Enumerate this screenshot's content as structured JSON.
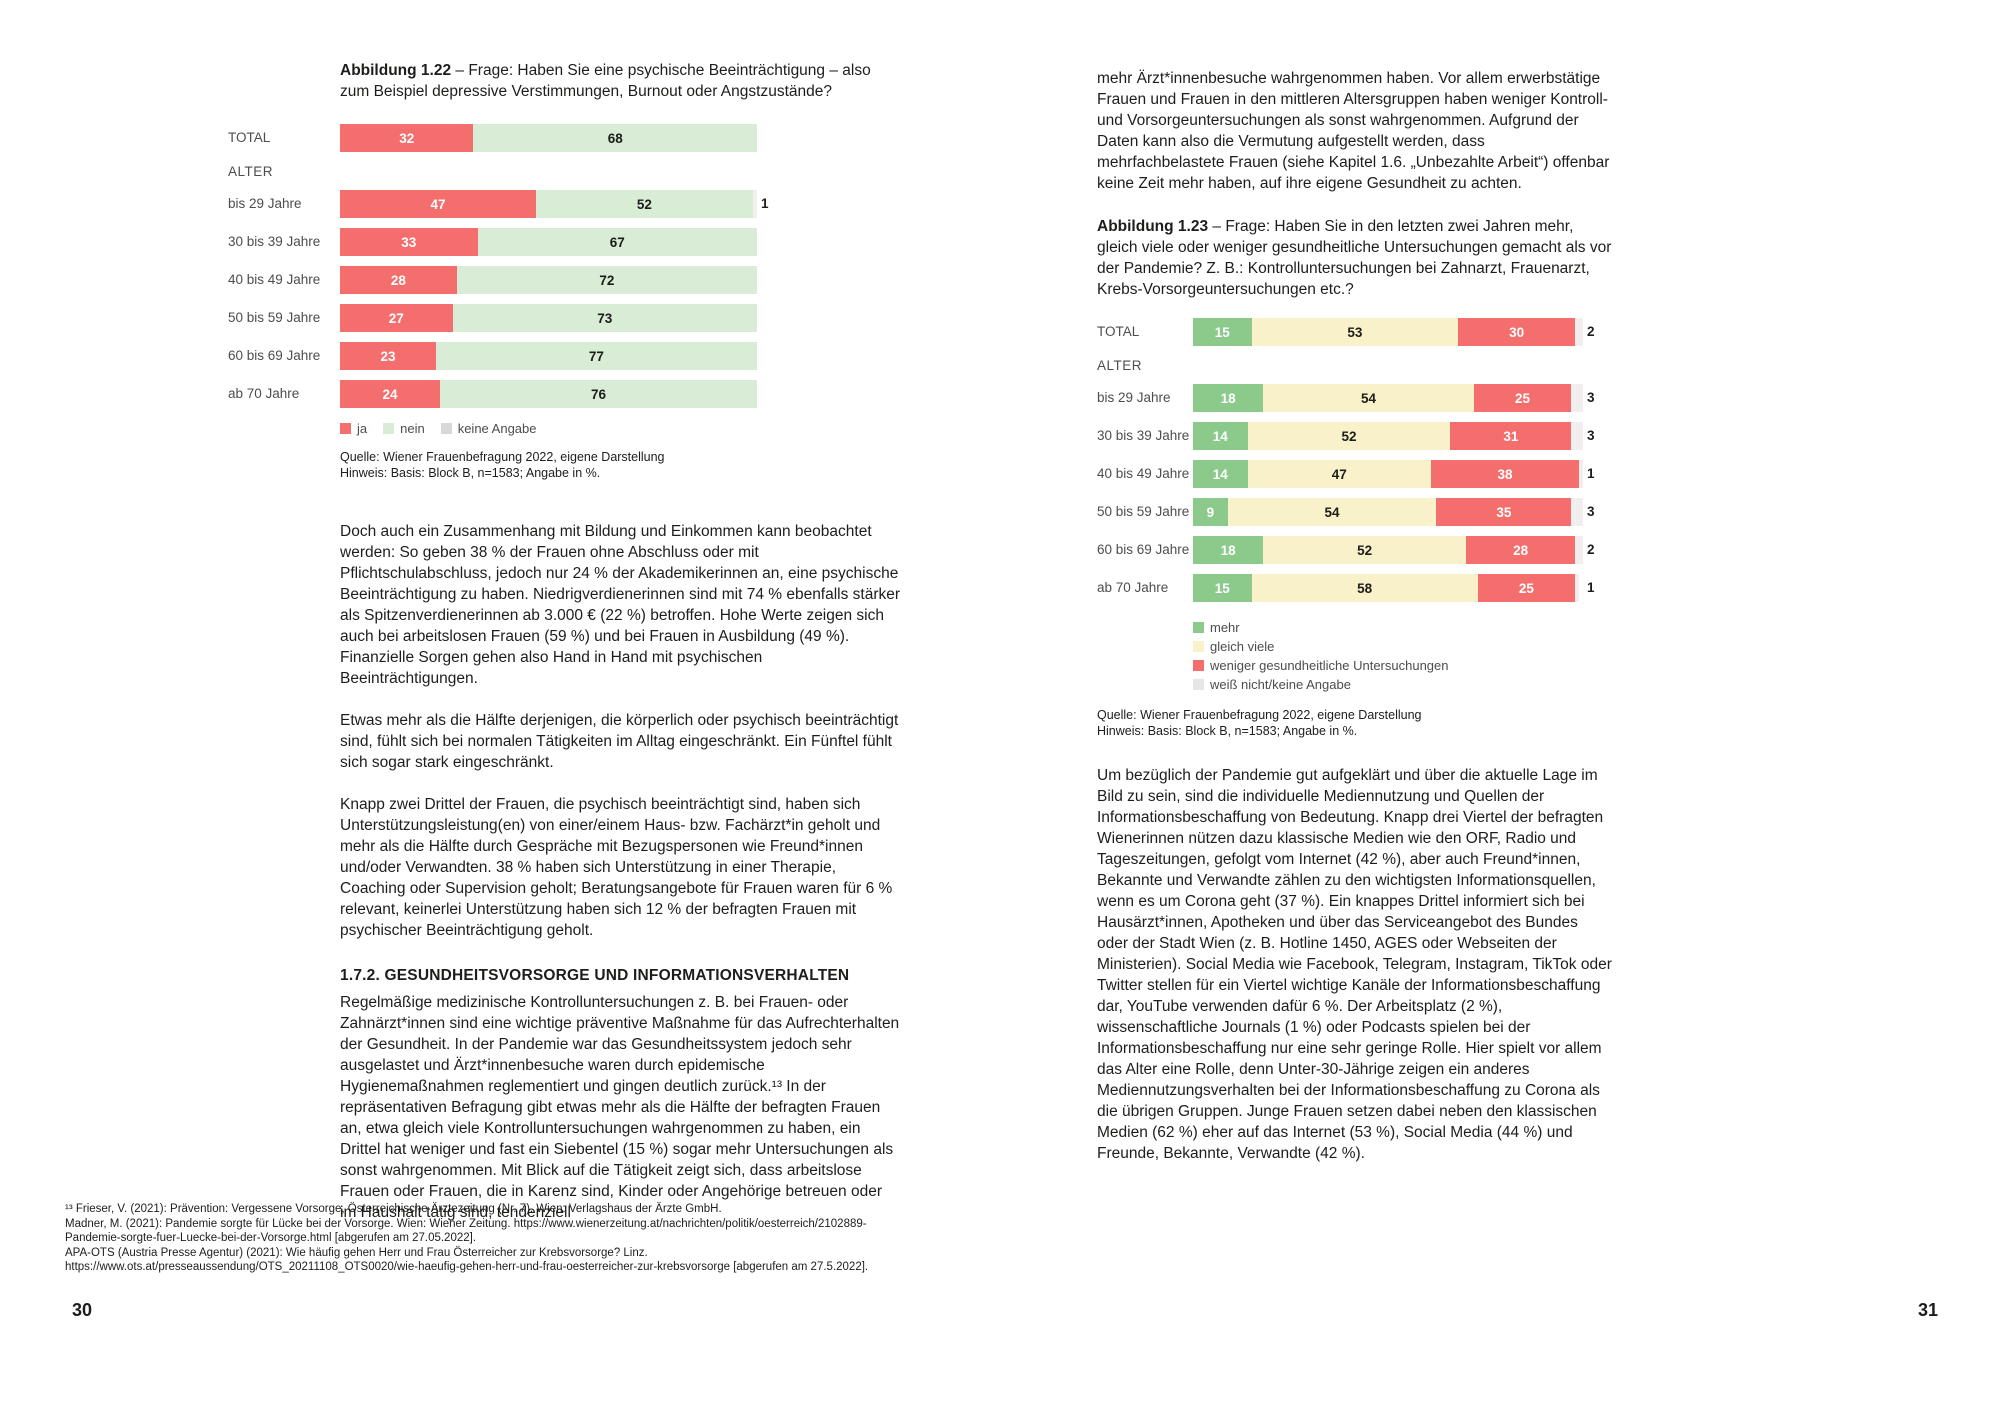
{
  "colors": {
    "text": "#1d1d1b",
    "axis_label_gray": "#4d4d4d",
    "red": "#f56e6e",
    "pale_green": "#d9ecd5",
    "green": "#8cca8c",
    "pale_yellow": "#f8f1c9",
    "light_gray": "#efefee"
  },
  "left": {
    "page_number": "30",
    "figure_label": "Abbildung 1.22",
    "figure_caption_rest": " – Frage: Haben Sie eine psychische Beeinträchtigung – also zum Beispiel depressive Verstimmungen, Burnout oder Angstzustände?",
    "source_line1": "Quelle: Wiener Frauenbefragung 2022, eigene Darstellung",
    "source_line2": "Hinweis: Basis: Block B, n=1583; Angabe in %.",
    "paragraphs_1": [
      "Doch auch ein Zusammenhang mit Bildung und Einkommen kann beobachtet werden: So geben 38 % der Frauen ohne Abschluss oder mit Pflichtschulabschluss, jedoch nur 24 % der Akademikerinnen an, eine psychische Beeinträchtigung zu haben. Niedrigverdienerinnen sind mit 74 % ebenfalls stärker als Spitzenverdienerinnen ab 3.000 € (22 %) betroffen. Hohe Werte zeigen sich auch bei arbeitslosen Frauen (59 %) und bei Frauen in Ausbildung (49 %). Finanzielle Sorgen gehen also Hand in Hand mit psychischen Beeinträchtigungen.",
      "Etwas mehr als die Hälfte derjenigen, die körperlich oder psychisch beeinträchtigt sind, fühlt sich bei normalen Tätigkeiten im Alltag eingeschränkt. Ein Fünftel fühlt sich sogar stark eingeschränkt.",
      "Knapp zwei Drittel der Frauen, die psychisch beeinträchtigt sind, haben sich Unterstützungsleistung(en) von einer/einem Haus- bzw. Fachärzt*in geholt und mehr als die Hälfte durch Gespräche mit Bezugspersonen wie Freund*innen und/oder Verwandten. 38 % haben sich Unterstützung in einer Therapie, Coaching oder Supervision geholt; Beratungsangebote für Frauen waren für 6 % relevant, keinerlei Unterstützung haben sich 12 % der befragten Frauen mit psychischer Beeinträchtigung geholt."
    ],
    "section_heading": "1.7.2. GESUNDHEITSVORSORGE UND INFORMATIONSVERHALTEN",
    "paragraphs_2": [
      "Regelmäßige medizinische Kontrolluntersuchungen z. B. bei Frauen- oder Zahnärzt*innen sind eine wichtige präventive Maßnahme für das Aufrechterhalten der Gesundheit. In der Pandemie war das Gesundheitssystem jedoch sehr ausgelastet und Ärzt*innenbesuche waren durch epidemische Hygienemaßnahmen reglementiert und gingen deutlich zurück.¹³ In der repräsentativen Befragung gibt etwas mehr als die Hälfte der befragten Frauen an, etwa gleich viele Kontrolluntersuchungen wahrgenommen zu haben, ein Drittel hat weniger und fast ein Siebentel (15 %) sogar mehr Untersuchungen als sonst wahrgenommen. Mit Blick auf die Tätigkeit zeigt sich, dass arbeitslose Frauen oder Frauen, die in Karenz sind, Kinder oder Angehörige betreuen oder im Haushalt tätig sind, tendenziell"
    ],
    "footnotes": [
      "¹³ Frieser, V. (2021): Prävention: Vergessene Vorsorge, Österreichische Ärztezeitung (Nr. 7). Wien: Verlagshaus der Ärzte GmbH.",
      "Madner, M. (2021): Pandemie sorgte für Lücke bei der Vorsorge. Wien: Wiener Zeitung. https://www.wienerzeitung.at/nachrichten/politik/oesterreich/2102889-Pandemie-sorgte-fuer-Luecke-bei-der-Vorsorge.html [abgerufen am 27.05.2022].",
      "APA-OTS (Austria Presse Agentur) (2021): Wie häufig gehen Herr und Frau Österreicher zur Krebsvorsorge? Linz. https://www.ots.at/presseaussendung/OTS_20211108_OTS0020/wie-haeufig-gehen-herr-und-frau-oesterreicher-zur-krebsvorsorge [abgerufen am 27.5.2022]."
    ]
  },
  "right": {
    "page_number": "31",
    "intro_paragraph": "mehr Ärzt*innenbesuche wahrgenommen haben. Vor allem erwerbstätige Frauen und Frauen in den mittleren Altersgruppen haben weniger Kontroll- und Vorsorgeuntersuchungen als sonst wahrgenommen. Aufgrund der Daten kann also die Vermutung aufgestellt werden, dass mehrfachbelastete Frauen (siehe Kapitel 1.6. „Unbezahlte Arbeit“) offenbar keine Zeit mehr haben, auf ihre eigene Gesundheit zu achten.",
    "figure_label": "Abbildung 1.23",
    "figure_caption_rest": " – Frage: Haben Sie in den letzten zwei Jahren mehr, gleich viele oder weniger gesundheitliche Untersuchungen gemacht als vor der Pandemie? Z. B.: Kontrolluntersuchungen bei Zahnarzt, Frauenarzt, Krebs-Vorsorgeuntersuchungen etc.?",
    "source_line1": "Quelle: Wiener Frauenbefragung 2022, eigene Darstellung",
    "source_line2": "Hinweis: Basis: Block B, n=1583; Angabe in %.",
    "paragraph": "Um bezüglich der Pandemie gut aufgeklärt und über die aktuelle Lage im Bild zu sein, sind die individuelle Mediennutzung und Quellen der Informationsbeschaffung von Bedeutung. Knapp drei Viertel der befragten Wienerinnen nützen dazu klassische Medien wie den ORF, Radio und Tageszeitungen, gefolgt vom Internet (42 %), aber auch Freund*innen, Bekannte und Verwandte zählen zu den wichtigsten Informationsquellen, wenn es um Corona geht (37 %). Ein knappes Drittel informiert sich bei Hausärzt*innen, Apotheken und über das Serviceangebot des Bundes oder der Stadt Wien (z. B. Hotline 1450, AGES oder Webseiten der Ministerien). Social Media wie Facebook, Telegram, Instagram, TikTok oder Twitter stellen für ein Viertel wichtige Kanäle der Informationsbeschaffung dar, YouTube verwenden dafür 6 %. Der Arbeitsplatz (2 %), wissenschaftliche Journals (1 %) oder Podcasts spielen bei der Informationsbeschaffung nur eine sehr geringe Rolle. Hier spielt vor allem das Alter eine Rolle, denn Unter-30-Jährige zeigen ein anderes Mediennutzungsverhalten bei der Informationsbeschaffung zu Corona als die übrigen Gruppen. Junge Frauen setzen dabei neben den klassischen Medien (62 %) eher auf das Internet (53 %), Social Media (44 %) und Freunde, Bekannte, Verwandte (42 %)."
  },
  "chart_data": [
    {
      "id": "chart-1-22",
      "type": "bar",
      "stacked": true,
      "orientation": "horizontal",
      "title": "Abbildung 1.22 – Frage: Haben Sie eine psychische Beeinträchtigung – also zum Beispiel depressive Verstimmungen, Burnout oder Angstzustände?",
      "group_label": "ALTER",
      "categories": [
        "TOTAL",
        "bis 29 Jahre",
        "30 bis 39 Jahre",
        "40 bis 49 Jahre",
        "50 bis 59 Jahre",
        "60 bis 69 Jahre",
        "ab 70 Jahre"
      ],
      "xlim": [
        0,
        100
      ],
      "unit": "%",
      "legend_position": "bottom-horizontal",
      "series": [
        {
          "name": "ja",
          "color": "#f56e6e",
          "label_color": "#ffffff",
          "values": [
            32,
            47,
            33,
            28,
            27,
            23,
            24
          ]
        },
        {
          "name": "nein",
          "color": "#d9ecd5",
          "label_color": "#1d1d1b",
          "values": [
            68,
            52,
            67,
            72,
            73,
            77,
            76
          ]
        },
        {
          "name": "keine Angabe",
          "color": "#efefee",
          "legend_color": "#d8d8d8",
          "label_color": "#1d1d1b",
          "label_outside": true,
          "values": [
            0,
            1,
            0,
            0,
            0,
            0,
            0
          ]
        }
      ],
      "source": "Quelle: Wiener Frauenbefragung 2022, eigene Darstellung",
      "note": "Hinweis: Basis: Block B, n=1583; Angabe in %."
    },
    {
      "id": "chart-1-23",
      "type": "bar",
      "stacked": true,
      "orientation": "horizontal",
      "title": "Abbildung 1.23 – Frage: Haben Sie in den letzten zwei Jahren mehr, gleich viele oder weniger gesundheitliche Untersuchungen gemacht als vor der Pandemie? Z. B.: Kontrolluntersuchungen bei Zahnarzt, Frauenarzt, Krebs-Vorsorgeuntersuchungen etc.?",
      "group_label": "ALTER",
      "categories": [
        "TOTAL",
        "bis 29 Jahre",
        "30 bis 39 Jahre",
        "40 bis 49 Jahre",
        "50 bis 59 Jahre",
        "60 bis 69 Jahre",
        "ab 70 Jahre"
      ],
      "xlim": [
        0,
        100
      ],
      "unit": "%",
      "legend_position": "bottom-vertical",
      "series": [
        {
          "name": "mehr",
          "color": "#8cca8c",
          "label_color": "#ffffff",
          "values": [
            15,
            18,
            14,
            14,
            9,
            18,
            15
          ]
        },
        {
          "name": "gleich viele",
          "color": "#f8f1c9",
          "label_color": "#1d1d1b",
          "values": [
            53,
            54,
            52,
            47,
            54,
            52,
            58
          ]
        },
        {
          "name": "weniger gesundheitliche Untersuchungen",
          "color": "#f56e6e",
          "label_color": "#ffffff",
          "values": [
            30,
            25,
            31,
            38,
            35,
            28,
            25
          ]
        },
        {
          "name": "weiß nicht/keine Angabe",
          "color": "#f0efed",
          "legend_color": "#e7e6e4",
          "label_color": "#1d1d1b",
          "label_outside": true,
          "values": [
            2,
            3,
            3,
            1,
            3,
            2,
            1
          ]
        }
      ],
      "source": "Quelle: Wiener Frauenbefragung 2022, eigene Darstellung",
      "note": "Hinweis: Basis: Block B, n=1583; Angabe in %."
    }
  ]
}
